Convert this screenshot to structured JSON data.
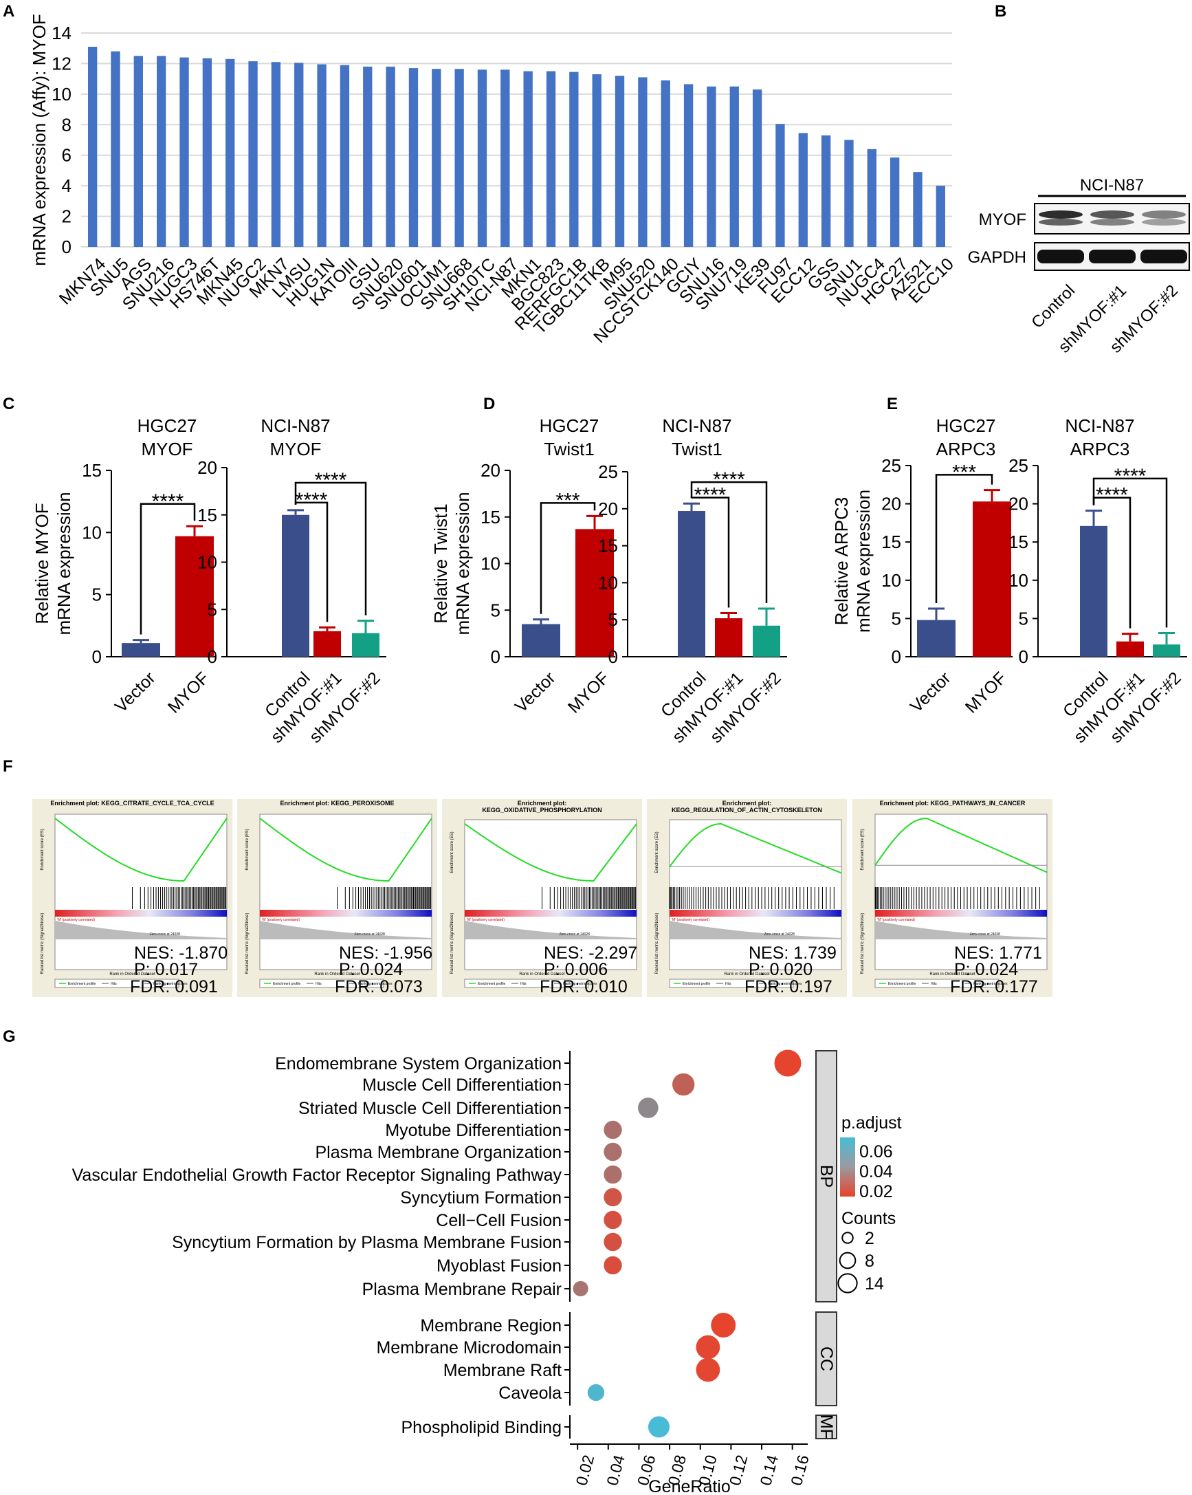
{
  "panels": {
    "A": "A",
    "B": "B",
    "C": "C",
    "D": "D",
    "E": "E",
    "F": "F",
    "G": "G"
  },
  "chart_data": [
    {
      "id": "A",
      "type": "bar",
      "ylabel": "mRNA expression (Affy): MYOF",
      "ylim": [
        0,
        14
      ],
      "yticks": [
        0,
        2,
        4,
        6,
        8,
        10,
        12,
        14
      ],
      "grid": true,
      "color": "#4472C4",
      "categories": [
        "MKN74",
        "SNU5",
        "AGS",
        "SNU216",
        "NUGC3",
        "HS746T",
        "MKN45",
        "NUGC2",
        "MKN7",
        "LMSU",
        "HUG1N",
        "KATOIII",
        "GSU",
        "SNU620",
        "SNU601",
        "OCUM1",
        "SNU668",
        "SH10TC",
        "NCI-N87",
        "MKN1",
        "BGC823",
        "RERFGC1B",
        "TGBC11TKB",
        "IM95",
        "SNU520",
        "NCCSTCK140",
        "GCIY",
        "SNU16",
        "SNU719",
        "KE39",
        "FU97",
        "ECC12",
        "GSS",
        "SNU1",
        "NUGC4",
        "HGC27",
        "AZ521",
        "ECC10"
      ],
      "values": [
        13.1,
        12.8,
        12.5,
        12.5,
        12.4,
        12.35,
        12.3,
        12.15,
        12.1,
        12.05,
        11.95,
        11.9,
        11.8,
        11.8,
        11.7,
        11.65,
        11.65,
        11.6,
        11.6,
        11.5,
        11.5,
        11.45,
        11.3,
        11.2,
        11.1,
        10.9,
        10.65,
        10.5,
        10.5,
        10.3,
        8.05,
        7.45,
        7.3,
        7.0,
        6.4,
        5.85,
        4.9,
        4.0
      ]
    },
    {
      "id": "C1",
      "type": "bar",
      "title": [
        "HGC27",
        "MYOF"
      ],
      "ylabel": [
        "Relative MYOF",
        "mRNA expression"
      ],
      "ylim": [
        0,
        15
      ],
      "yticks": [
        0,
        5,
        10,
        15
      ],
      "categories": [
        "Vector",
        "MYOF"
      ],
      "values": [
        1.1,
        9.7
      ],
      "errors": [
        0.25,
        0.8
      ],
      "colors": [
        "#3B4E8C",
        "#C00000"
      ],
      "sig": [
        {
          "from": 0,
          "to": 1,
          "label": "****",
          "level": 12.3
        }
      ]
    },
    {
      "id": "C2",
      "type": "bar",
      "title": [
        "NCI-N87",
        "MYOF"
      ],
      "ylim": [
        0,
        20
      ],
      "yticks": [
        0,
        5,
        10,
        15,
        20
      ],
      "categories": [
        "Control",
        "shMYOF:#1",
        "shMYOF:#2"
      ],
      "values": [
        15.0,
        2.7,
        2.5
      ],
      "errors": [
        0.5,
        0.4,
        1.3
      ],
      "colors": [
        "#3B4E8C",
        "#C00000",
        "#14A085"
      ],
      "sig": [
        {
          "from": 0,
          "to": 1,
          "label": "****",
          "level": 16.3
        },
        {
          "from": 0,
          "to": 2,
          "label": "****",
          "level": 18.4
        }
      ]
    },
    {
      "id": "D1",
      "type": "bar",
      "title": [
        "HGC27",
        "Twist1"
      ],
      "ylabel": [
        "Relative Twist1",
        "mRNA expression"
      ],
      "ylim": [
        0,
        20
      ],
      "yticks": [
        0,
        5,
        10,
        15,
        20
      ],
      "categories": [
        "Vector",
        "MYOF"
      ],
      "values": [
        3.5,
        13.7
      ],
      "errors": [
        0.5,
        1.4
      ],
      "colors": [
        "#3B4E8C",
        "#C00000"
      ],
      "sig": [
        {
          "from": 0,
          "to": 1,
          "label": "***",
          "level": 16.5
        }
      ]
    },
    {
      "id": "D2",
      "type": "bar",
      "title": [
        "NCI-N87",
        "Twist1"
      ],
      "ylim": [
        0,
        25
      ],
      "yticks": [
        0,
        5,
        10,
        15,
        20,
        25
      ],
      "categories": [
        "Control",
        "shMYOF:#1",
        "shMYOF:#2"
      ],
      "values": [
        19.7,
        5.2,
        4.2
      ],
      "errors": [
        1.0,
        0.7,
        2.3
      ],
      "colors": [
        "#3B4E8C",
        "#C00000",
        "#14A085"
      ],
      "sig": [
        {
          "from": 0,
          "to": 1,
          "label": "****",
          "level": 21.5
        },
        {
          "from": 0,
          "to": 2,
          "label": "****",
          "level": 23.6
        }
      ]
    },
    {
      "id": "E1",
      "type": "bar",
      "title": [
        "HGC27",
        "ARPC3"
      ],
      "ylabel": [
        "Relative ARPC3",
        "mRNA expression"
      ],
      "ylim": [
        0,
        25
      ],
      "yticks": [
        0,
        5,
        10,
        15,
        20,
        25
      ],
      "categories": [
        "Vector",
        "MYOF"
      ],
      "values": [
        4.8,
        20.3
      ],
      "errors": [
        1.5,
        1.5
      ],
      "colors": [
        "#3B4E8C",
        "#C00000"
      ],
      "sig": [
        {
          "from": 0,
          "to": 1,
          "label": "***",
          "level": 23.8
        }
      ]
    },
    {
      "id": "E2",
      "type": "bar",
      "title": [
        "NCI-N87",
        "ARPC3"
      ],
      "ylim": [
        0,
        25
      ],
      "yticks": [
        0,
        5,
        10,
        15,
        20,
        25
      ],
      "categories": [
        "Control",
        "shMYOF:#1",
        "shMYOF:#2"
      ],
      "values": [
        17.1,
        2.0,
        1.6
      ],
      "errors": [
        2.0,
        1.0,
        1.5
      ],
      "colors": [
        "#3B4E8C",
        "#C00000",
        "#14A085"
      ],
      "sig": [
        {
          "from": 0,
          "to": 1,
          "label": "****",
          "level": 20.8
        },
        {
          "from": 0,
          "to": 2,
          "label": "****",
          "level": 23.3
        }
      ]
    },
    {
      "id": "G",
      "type": "scatter",
      "xlabel": "GeneRatio",
      "xlim": [
        0.015,
        0.17
      ],
      "xticks": [
        0.02,
        0.04,
        0.06,
        0.08,
        0.1,
        0.12,
        0.14,
        0.16
      ],
      "xticklabels": [
        "0.02",
        "0.04",
        "0.06",
        "0.08",
        "0.10",
        "0.12",
        "0.14",
        "0.16"
      ],
      "legend": {
        "color_title": "p.adjust",
        "color_ticks": [
          "0.06",
          "0.04",
          "0.02"
        ],
        "size_title": "Counts",
        "size_labels": [
          "2",
          "8",
          "14"
        ]
      },
      "groups": [
        {
          "name": "BP",
          "terms": [
            {
              "term": "Endomembrane System Organization",
              "x": 0.157,
              "p": 0.005,
              "count": 14
            },
            {
              "term": "Muscle Cell Differentiation",
              "x": 0.089,
              "p": 0.02,
              "count": 8
            },
            {
              "term": "Striated Muscle Cell Differentiation",
              "x": 0.066,
              "p": 0.04,
              "count": 6
            },
            {
              "term": "Myotube Differentiation",
              "x": 0.043,
              "p": 0.028,
              "count": 4
            },
            {
              "term": "Plasma Membrane Organization",
              "x": 0.043,
              "p": 0.028,
              "count": 4
            },
            {
              "term": "Vascular Endothelial Growth Factor Receptor Signaling Pathway",
              "x": 0.043,
              "p": 0.028,
              "count": 4
            },
            {
              "term": "Syncytium Formation",
              "x": 0.043,
              "p": 0.014,
              "count": 4
            },
            {
              "term": "Cell−Cell Fusion",
              "x": 0.043,
              "p": 0.012,
              "count": 4
            },
            {
              "term": "Syncytium Formation by Plasma Membrane Fusion",
              "x": 0.043,
              "p": 0.012,
              "count": 4
            },
            {
              "term": "Myoblast Fusion",
              "x": 0.043,
              "p": 0.01,
              "count": 4
            },
            {
              "term": "Plasma Membrane Repair",
              "x": 0.022,
              "p": 0.03,
              "count": 2
            }
          ]
        },
        {
          "name": "CC",
          "terms": [
            {
              "term": "Membrane Region",
              "x": 0.115,
              "p": 0.005,
              "count": 11
            },
            {
              "term": "Membrane Microdomain",
              "x": 0.105,
              "p": 0.006,
              "count": 10
            },
            {
              "term": "Membrane Raft",
              "x": 0.105,
              "p": 0.006,
              "count": 10
            },
            {
              "term": "Caveola",
              "x": 0.032,
              "p": 0.065,
              "count": 3
            }
          ]
        },
        {
          "name": "MF",
          "terms": [
            {
              "term": "Phospholipid Binding",
              "x": 0.073,
              "p": 0.068,
              "count": 7
            }
          ]
        }
      ]
    }
  ],
  "western": {
    "cell_line": "NCI-N87",
    "bands": [
      "MYOF",
      "GAPDH"
    ],
    "lanes": [
      "Control",
      "shMYOF:#1",
      "shMYOF:#2"
    ]
  },
  "gsea": [
    {
      "title": [
        "Enrichment plot: KEGG_CITRATE_CYCLE_TCA_CYCLE"
      ],
      "nes": "NES: -1.870",
      "p": "P: 0.017",
      "fdr": "FDR: 0.091",
      "dir": "neg"
    },
    {
      "title": [
        "Enrichment plot: KEGG_PEROXISOME"
      ],
      "nes": "NES: -1.956",
      "p": "P: 0.024",
      "fdr": "FDR: 0.073",
      "dir": "neg"
    },
    {
      "title": [
        "Enrichment plot:",
        "KEGG_OXIDATIVE_PHOSPHORYLATION"
      ],
      "nes": "NES: -2.297",
      "p": "P: 0.006",
      "fdr": "FDR: 0.010",
      "dir": "neg"
    },
    {
      "title": [
        "Enrichment plot:",
        "KEGG_REGULATION_OF_ACTIN_CYTOSKELETON"
      ],
      "nes": "NES: 1.739",
      "p": "P: 0.020",
      "fdr": "FDR: 0.197",
      "dir": "pos"
    },
    {
      "title": [
        "Enrichment plot: KEGG_PATHWAYS_IN_CANCER"
      ],
      "nes": "NES: 1.771",
      "p": "P: 0.024",
      "fdr": "FDR: 0.177",
      "dir": "pos"
    }
  ],
  "gsea_labels": {
    "es_axis": "Enrichment score (ES)",
    "metric_axis": "Ranked list metric (Signal2Noise)",
    "rank_axis": "Rank in Ordered Dataset",
    "correlated": "'M' (positively correlated)",
    "zero_cross": "Zero cross at 24028",
    "legend": [
      "Enrichment profile",
      "Hits",
      "Ranking metric scores"
    ]
  }
}
